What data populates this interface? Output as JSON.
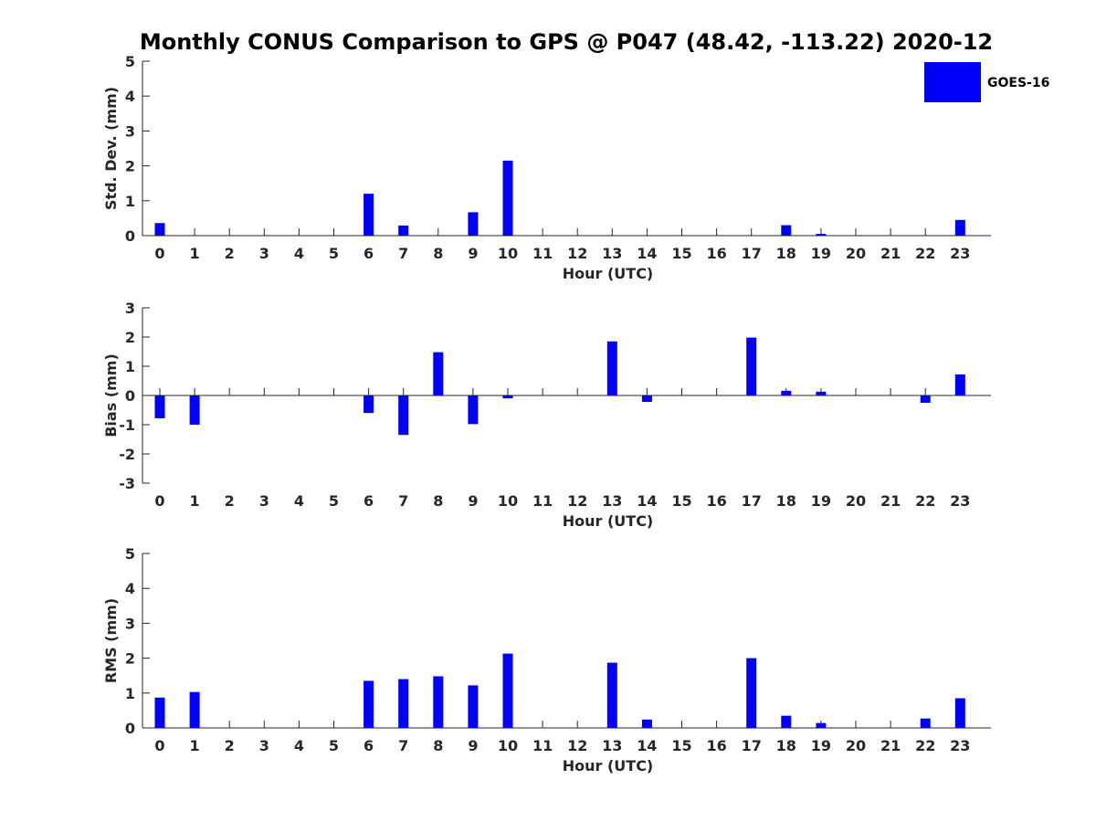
{
  "title": "Monthly CONUS Comparison to GPS @ P047 (48.42, -113.22) 2020-12",
  "legend": {
    "label": "GOES-16",
    "color": "#0000ff",
    "placement": "top-right"
  },
  "chart_data": [
    {
      "type": "bar",
      "xlabel": "Hour (UTC)",
      "ylabel": "Std. Dev. (mm)",
      "ylim": [
        0,
        5
      ],
      "yticks": [
        "0",
        "1",
        "2",
        "3",
        "4",
        "5"
      ],
      "categories": [
        "0",
        "1",
        "2",
        "3",
        "4",
        "5",
        "6",
        "7",
        "8",
        "9",
        "10",
        "11",
        "12",
        "13",
        "14",
        "15",
        "16",
        "17",
        "18",
        "19",
        "20",
        "21",
        "22",
        "23"
      ],
      "series": [
        {
          "name": "GOES-16",
          "values": [
            0.36,
            0,
            0,
            0,
            0,
            0,
            1.2,
            0.29,
            0,
            0.67,
            2.15,
            0,
            0,
            0,
            0,
            0,
            0,
            0,
            0.3,
            0.05,
            0,
            0,
            0,
            0.45
          ]
        }
      ]
    },
    {
      "type": "bar",
      "xlabel": "Hour (UTC)",
      "ylabel": "Bias (mm)",
      "ylim": [
        -3,
        3
      ],
      "yticks": [
        "-3",
        "-2",
        "-1",
        "0",
        "1",
        "2",
        "3"
      ],
      "categories": [
        "0",
        "1",
        "2",
        "3",
        "4",
        "5",
        "6",
        "7",
        "8",
        "9",
        "10",
        "11",
        "12",
        "13",
        "14",
        "15",
        "16",
        "17",
        "18",
        "19",
        "20",
        "21",
        "22",
        "23"
      ],
      "series": [
        {
          "name": "GOES-16",
          "values": [
            -0.78,
            -1.0,
            0,
            0,
            0,
            0,
            -0.6,
            -1.35,
            1.48,
            -0.98,
            -0.1,
            0,
            0,
            1.85,
            -0.22,
            0,
            0,
            1.98,
            0.16,
            0.13,
            0,
            0,
            -0.25,
            0.72
          ]
        }
      ]
    },
    {
      "type": "bar",
      "xlabel": "Hour (UTC)",
      "ylabel": "RMS (mm)",
      "ylim": [
        0,
        5
      ],
      "yticks": [
        "0",
        "1",
        "2",
        "3",
        "4",
        "5"
      ],
      "categories": [
        "0",
        "1",
        "2",
        "3",
        "4",
        "5",
        "6",
        "7",
        "8",
        "9",
        "10",
        "11",
        "12",
        "13",
        "14",
        "15",
        "16",
        "17",
        "18",
        "19",
        "20",
        "21",
        "22",
        "23"
      ],
      "series": [
        {
          "name": "GOES-16",
          "values": [
            0.87,
            1.03,
            0,
            0,
            0,
            0,
            1.35,
            1.4,
            1.48,
            1.22,
            2.13,
            0,
            0,
            1.87,
            0.24,
            0,
            0,
            2.0,
            0.35,
            0.14,
            0,
            0,
            0.27,
            0.85
          ]
        }
      ]
    }
  ]
}
